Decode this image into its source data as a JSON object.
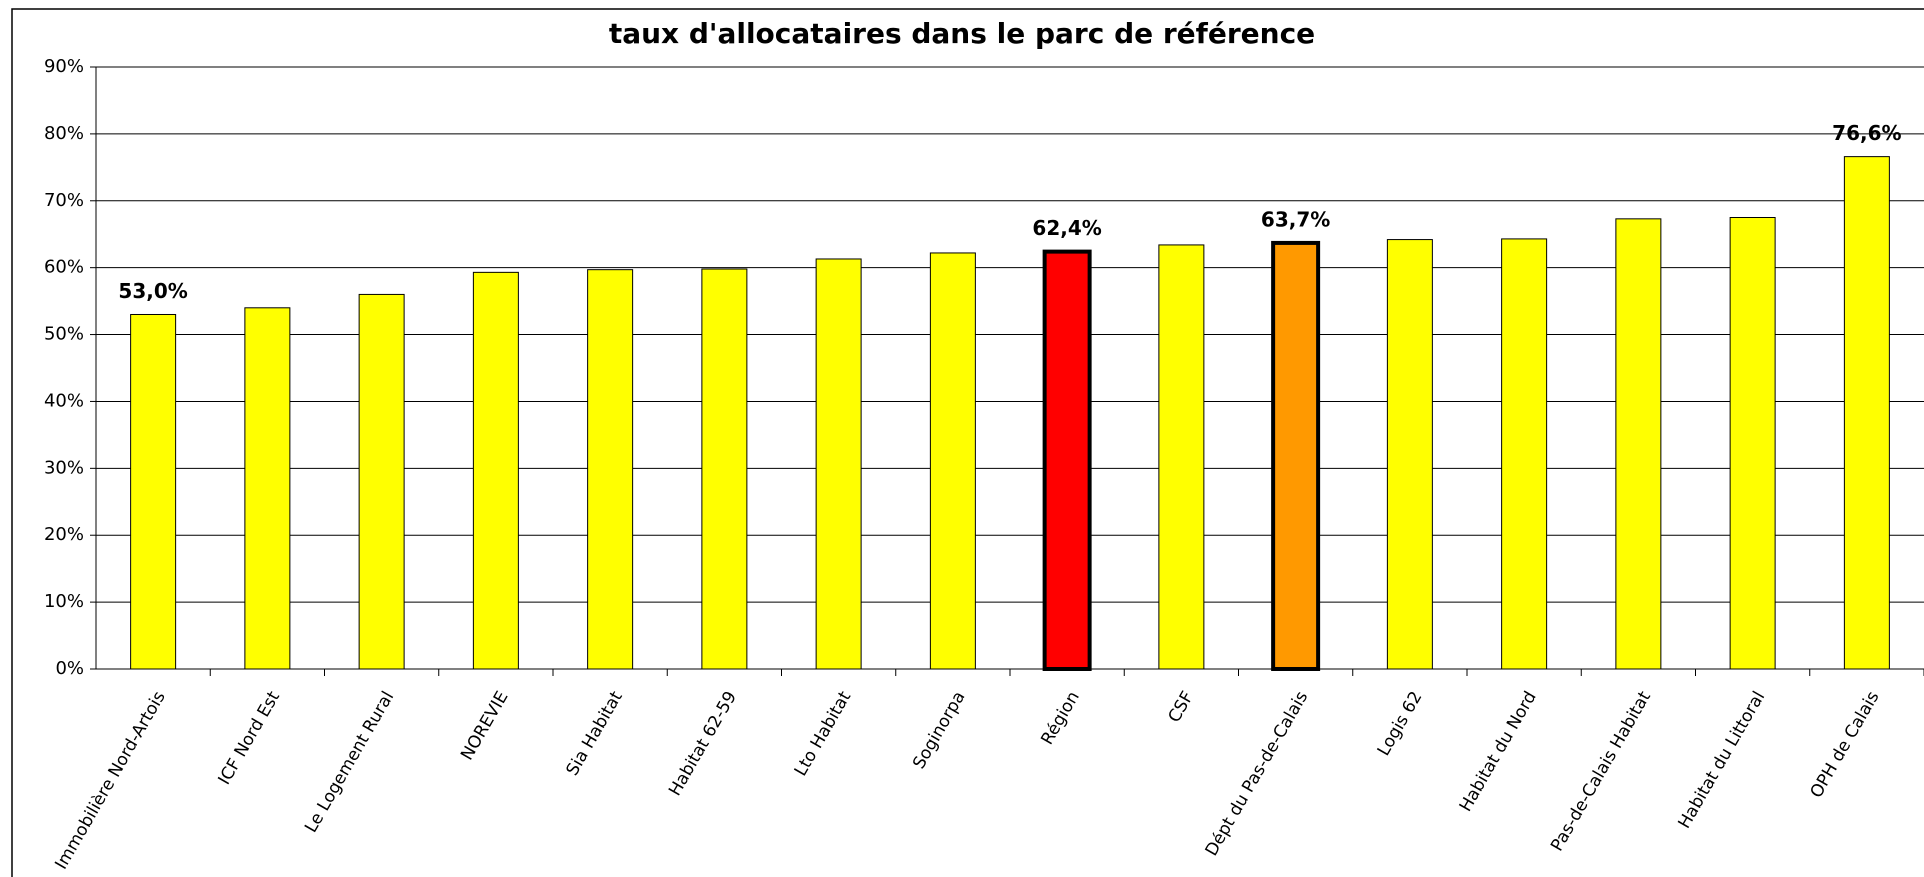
{
  "chart_data": {
    "type": "bar",
    "title": "taux d'allocataires dans le parc de référence",
    "categories": [
      "Immobilière Nord-Artois",
      "ICF Nord Est",
      "Le Logement Rural",
      "NOREVIE",
      "Sia Habitat",
      "Habitat 62-59",
      "Lto Habitat",
      "Soginorpa",
      "Région",
      "CSF",
      "Dépt du Pas-de-Calais",
      "Logis 62",
      "Habitat du Nord",
      "Pas-de-Calais Habitat",
      "Habitat du Littoral",
      "OPH de Calais"
    ],
    "values": [
      53.0,
      54.0,
      56.0,
      59.3,
      59.7,
      59.8,
      61.3,
      62.2,
      62.4,
      63.4,
      63.7,
      64.2,
      64.3,
      67.3,
      67.5,
      76.6
    ],
    "value_labels": [
      "53,0%",
      null,
      null,
      null,
      null,
      null,
      null,
      null,
      "62,4%",
      null,
      "63,7%",
      null,
      null,
      null,
      null,
      "76,6%"
    ],
    "colors": [
      "#ffff00",
      "#ffff00",
      "#ffff00",
      "#ffff00",
      "#ffff00",
      "#ffff00",
      "#ffff00",
      "#ffff00",
      "#ff0000",
      "#ffff00",
      "#ff9900",
      "#ffff00",
      "#ffff00",
      "#ffff00",
      "#ffff00",
      "#ffff00"
    ],
    "edge_widths": [
      1,
      1,
      1,
      1,
      1,
      1,
      1,
      1,
      4,
      1,
      4,
      1,
      1,
      1,
      1,
      1
    ],
    "ylim": [
      0,
      90
    ],
    "yticks": [
      {
        "value": 0,
        "label": "0%"
      },
      {
        "value": 10,
        "label": "10%"
      },
      {
        "value": 20,
        "label": "20%"
      },
      {
        "value": 30,
        "label": "30%"
      },
      {
        "value": 40,
        "label": "40%"
      },
      {
        "value": 50,
        "label": "50%"
      },
      {
        "value": 60,
        "label": "60%"
      },
      {
        "value": 70,
        "label": "70%"
      },
      {
        "value": 80,
        "label": "80%"
      },
      {
        "value": 90,
        "label": "90%"
      }
    ],
    "grid": true
  }
}
